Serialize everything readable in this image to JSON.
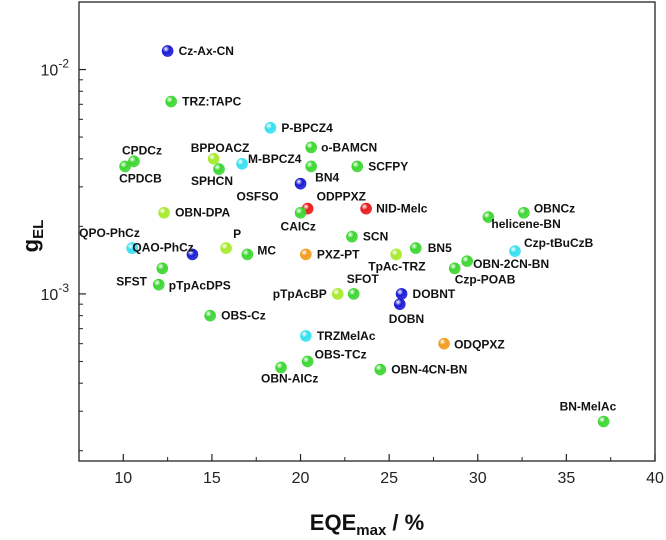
{
  "chart_data": {
    "type": "scatter",
    "title": "",
    "xlabel": "EQE",
    "xlabel_sub": "max",
    "xlabel_unit": " / %",
    "ylabel": "g",
    "ylabel_sub": "EL",
    "xlim": [
      7.5,
      40
    ],
    "ylim": [
      0.00018,
      0.02
    ],
    "yscale": "log",
    "grid": false,
    "legend": "none",
    "x_ticks": [
      10,
      15,
      20,
      25,
      30,
      35,
      40
    ],
    "x_tick_labels": [
      "10",
      "15",
      "20",
      "25",
      "30",
      "35",
      "40"
    ],
    "y_ticks": [
      0.001,
      0.01
    ],
    "y_tick_labels": [
      {
        "base": "10",
        "exp": "-3"
      },
      {
        "base": "10",
        "exp": "-2"
      }
    ],
    "colors": {
      "blue": "#1a1ad6",
      "cyan": "#33e0f0",
      "green": "#3bd630",
      "lime": "#a6ea2a",
      "red": "#e81818",
      "orange": "#f29a1a",
      "axis": "#222222"
    },
    "points": [
      {
        "label": "Cz-Ax-CN",
        "x": 12.5,
        "y": 0.0121,
        "color": "blue"
      },
      {
        "label": "TRZ:TAPC",
        "x": 12.7,
        "y": 0.0072,
        "color": "green"
      },
      {
        "label": "P-BPCZ4",
        "x": 18.3,
        "y": 0.0055,
        "color": "cyan"
      },
      {
        "label": "CPDCz",
        "x": 10.6,
        "y": 0.0039,
        "color": "green"
      },
      {
        "label": "CPDCB",
        "x": 10.1,
        "y": 0.0037,
        "color": "green"
      },
      {
        "label": "BPPOACZ",
        "x": 15.1,
        "y": 0.004,
        "color": "lime"
      },
      {
        "label": "SPHCN",
        "x": 15.4,
        "y": 0.0036,
        "color": "green"
      },
      {
        "label": "M-BPCZ4",
        "x": 16.7,
        "y": 0.0038,
        "color": "cyan"
      },
      {
        "label": "o-BAMCN",
        "x": 20.6,
        "y": 0.0045,
        "color": "green"
      },
      {
        "label": "BN4",
        "x": 20.6,
        "y": 0.0037,
        "color": "green"
      },
      {
        "label": "SCFPY",
        "x": 23.2,
        "y": 0.0037,
        "color": "green"
      },
      {
        "label": "OSFSO",
        "x": 20.0,
        "y": 0.0031,
        "color": "blue"
      },
      {
        "label": "OBN-DPA",
        "x": 12.3,
        "y": 0.0023,
        "color": "lime"
      },
      {
        "label": "ODPPXZ",
        "x": 20.4,
        "y": 0.0024,
        "color": "red"
      },
      {
        "label": "CAICz",
        "x": 20.0,
        "y": 0.0023,
        "color": "green"
      },
      {
        "label": "NID-Melc",
        "x": 23.7,
        "y": 0.0024,
        "color": "red"
      },
      {
        "label": "OBNCz",
        "x": 32.6,
        "y": 0.0023,
        "color": "green"
      },
      {
        "label": "helicene-BN",
        "x": 30.6,
        "y": 0.0022,
        "color": "green"
      },
      {
        "label": "QPO-PhCz",
        "x": 10.5,
        "y": 0.0016,
        "color": "cyan"
      },
      {
        "label": "QAO-PhCz",
        "x": 13.9,
        "y": 0.0015,
        "color": "blue"
      },
      {
        "label": "P",
        "x": 15.8,
        "y": 0.0016,
        "color": "lime"
      },
      {
        "label": "MC",
        "x": 17.0,
        "y": 0.0015,
        "color": "green"
      },
      {
        "label": "SCN",
        "x": 22.9,
        "y": 0.0018,
        "color": "green"
      },
      {
        "label": "PXZ-PT",
        "x": 20.3,
        "y": 0.0015,
        "color": "orange"
      },
      {
        "label": "BN5",
        "x": 26.5,
        "y": 0.0016,
        "color": "green"
      },
      {
        "label": "TpAc-TRZ",
        "x": 25.4,
        "y": 0.0015,
        "color": "lime"
      },
      {
        "label": "Czp-tBuCzB",
        "x": 32.1,
        "y": 0.00155,
        "color": "cyan"
      },
      {
        "label": "OBN-2CN-BN",
        "x": 29.4,
        "y": 0.0014,
        "color": "green"
      },
      {
        "label": "Czp-POAB",
        "x": 28.7,
        "y": 0.0013,
        "color": "green"
      },
      {
        "label": "SFST",
        "x": 12.2,
        "y": 0.0013,
        "color": "green"
      },
      {
        "label": "pTpAcDPS",
        "x": 12.0,
        "y": 0.0011,
        "color": "green"
      },
      {
        "label": "SFOT",
        "x": 23.0,
        "y": 0.001,
        "color": "green"
      },
      {
        "label": "pTpAcBP",
        "x": 22.1,
        "y": 0.001,
        "color": "lime"
      },
      {
        "label": "DOBNT",
        "x": 25.7,
        "y": 0.001,
        "color": "blue"
      },
      {
        "label": "DOBN",
        "x": 25.6,
        "y": 0.0009,
        "color": "blue"
      },
      {
        "label": "OBS-Cz",
        "x": 14.9,
        "y": 0.0008,
        "color": "green"
      },
      {
        "label": "TRZMelAc",
        "x": 20.3,
        "y": 0.00065,
        "color": "cyan"
      },
      {
        "label": "ODQPXZ",
        "x": 28.1,
        "y": 0.0006,
        "color": "orange"
      },
      {
        "label": "OBS-TCz",
        "x": 20.4,
        "y": 0.0005,
        "color": "green"
      },
      {
        "label": "OBN-AICz",
        "x": 18.9,
        "y": 0.00047,
        "color": "green"
      },
      {
        "label": "OBN-4CN-BN",
        "x": 24.5,
        "y": 0.00046,
        "color": "green"
      },
      {
        "label": "BN-MelAc",
        "x": 37.1,
        "y": 0.00027,
        "color": "green"
      }
    ]
  }
}
